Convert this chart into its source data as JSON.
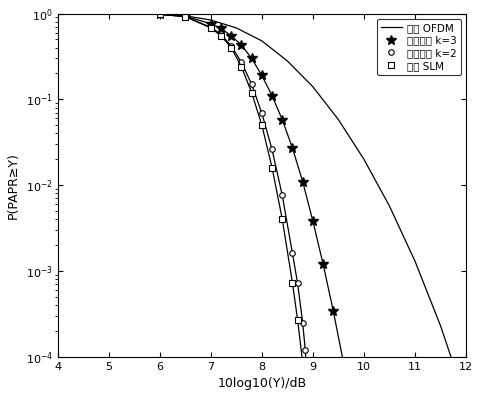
{
  "title": "",
  "xlabel": "10log10(Y)/dB",
  "ylabel": "P(PAPR≥Y)",
  "xlim": [
    4,
    12
  ],
  "legend": [
    {
      "label": "原始 OFDM"
    },
    {
      "label": "改进算法 k=3"
    },
    {
      "label": "改进算法 k=2"
    },
    {
      "label": "传统 SLM"
    }
  ],
  "curve_ofdm_x": [
    4.0,
    5.0,
    6.0,
    6.5,
    7.0,
    7.5,
    8.0,
    8.5,
    9.0,
    9.5,
    10.0,
    10.5,
    11.0,
    11.5,
    12.0
  ],
  "curve_ofdm_y": [
    1.0,
    1.0,
    0.98,
    0.94,
    0.84,
    0.68,
    0.48,
    0.28,
    0.14,
    0.058,
    0.02,
    0.0057,
    0.0013,
    0.00023,
    3e-05
  ],
  "curve_k3_x": [
    4.0,
    5.0,
    6.0,
    6.5,
    7.0,
    7.2,
    7.4,
    7.6,
    7.8,
    8.0,
    8.2,
    8.4,
    8.6,
    8.8,
    9.0,
    9.2,
    9.4,
    9.6,
    9.8,
    10.0,
    10.2
  ],
  "curve_k3_y": [
    1.0,
    1.0,
    0.98,
    0.93,
    0.76,
    0.67,
    0.55,
    0.43,
    0.3,
    0.19,
    0.11,
    0.058,
    0.027,
    0.011,
    0.0038,
    0.0012,
    0.00034,
    8.5e-05,
    1.8e-05,
    4e-06,
    1.5e-06
  ],
  "curve_k2_x": [
    4.0,
    5.0,
    6.0,
    6.5,
    7.0,
    7.2,
    7.4,
    7.6,
    7.8,
    8.0,
    8.2,
    8.4,
    8.6,
    8.7,
    8.8,
    8.85,
    8.9
  ],
  "curve_k2_y": [
    1.0,
    1.0,
    0.98,
    0.92,
    0.69,
    0.57,
    0.42,
    0.27,
    0.15,
    0.069,
    0.026,
    0.0076,
    0.0016,
    0.00072,
    0.00025,
    0.00012,
    4.2e-05
  ],
  "curve_slm_x": [
    4.0,
    5.0,
    6.0,
    6.5,
    7.0,
    7.2,
    7.4,
    7.6,
    7.8,
    8.0,
    8.2,
    8.4,
    8.6,
    8.7,
    8.8,
    8.9,
    9.0
  ],
  "curve_slm_y": [
    1.0,
    1.0,
    0.98,
    0.92,
    0.68,
    0.55,
    0.4,
    0.24,
    0.12,
    0.05,
    0.016,
    0.004,
    0.00072,
    0.00027,
    8.5e-05,
    2.2e-05,
    1e-05
  ],
  "mk_k3_x": [
    6.0,
    6.5,
    7.0,
    7.2,
    7.4,
    7.6,
    7.8,
    8.0,
    8.2,
    8.4,
    8.6,
    8.8,
    9.0,
    9.2,
    9.4,
    9.6,
    9.8,
    10.0
  ],
  "mk_k3_y": [
    0.98,
    0.93,
    0.76,
    0.67,
    0.55,
    0.43,
    0.3,
    0.19,
    0.11,
    0.058,
    0.027,
    0.011,
    0.0038,
    0.0012,
    0.00034,
    8.5e-05,
    1.8e-05,
    4e-06
  ],
  "mk_k2_x": [
    6.0,
    6.5,
    7.0,
    7.2,
    7.4,
    7.6,
    7.8,
    8.0,
    8.2,
    8.4,
    8.6,
    8.7,
    8.8,
    8.85,
    8.9
  ],
  "mk_k2_y": [
    0.98,
    0.92,
    0.69,
    0.57,
    0.42,
    0.27,
    0.15,
    0.069,
    0.026,
    0.0076,
    0.0016,
    0.00072,
    0.00025,
    0.00012,
    4.2e-05
  ],
  "mk_slm_x": [
    6.0,
    6.5,
    7.0,
    7.2,
    7.4,
    7.6,
    7.8,
    8.0,
    8.2,
    8.4,
    8.6,
    8.7,
    8.8,
    8.9,
    9.0
  ],
  "mk_slm_y": [
    0.98,
    0.92,
    0.68,
    0.55,
    0.4,
    0.24,
    0.12,
    0.05,
    0.016,
    0.004,
    0.00072,
    0.00027,
    8.5e-05,
    2.2e-05,
    1e-05
  ]
}
